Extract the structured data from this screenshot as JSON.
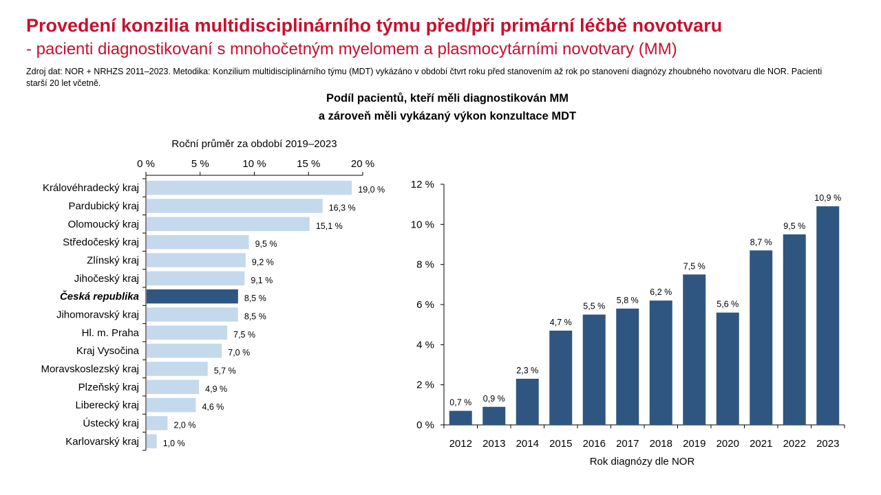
{
  "page": {
    "title": "Provedení konzilia multidisciplinárního týmu před/při primární léčbě novotvaru",
    "subtitle": "- pacienti diagnostikovaní s mnohočetným myelomem a plasmocytárními novotvary (MM)",
    "source_note": "Zdroj dat: NOR + NRHZS 2011–2023. Metodika: Konzilium multidisciplinárního týmu (MDT) vykázáno v období čtvrt roku před stanovením až rok po stanovení diagnózy zhoubného novotvaru dle NOR. Pacienti starší 20 let včetně.",
    "chart_heading_line1": "Podíl pacientů, kteří měli diagnostikován MM",
    "chart_heading_line2": "a zároveň měli vykázaný výkon konzultace MDT"
  },
  "chart_data": [
    {
      "type": "bar",
      "orientation": "horizontal",
      "title": "Roční průměr za období 2019–2023",
      "xlabel": "",
      "ylabel": "",
      "xlim": [
        0,
        20
      ],
      "x_ticks": [
        "0 %",
        "5 %",
        "10 %",
        "15 %",
        "20 %"
      ],
      "x_axis_position": "top",
      "categories": [
        "Královéhradecký kraj",
        "Pardubický kraj",
        "Olomoucký kraj",
        "Středočeský kraj",
        "Zlínský kraj",
        "Jihočeský kraj",
        "Česká republika",
        "Jihomoravský kraj",
        "Hl. m. Praha",
        "Kraj Vysočina",
        "Moravskoslezský kraj",
        "Plzeňský kraj",
        "Liberecký kraj",
        "Ústecký kraj",
        "Karlovarský kraj"
      ],
      "values": [
        19.0,
        16.3,
        15.1,
        9.5,
        9.2,
        9.1,
        8.5,
        8.5,
        7.5,
        7.0,
        5.7,
        4.9,
        4.6,
        2.0,
        1.0
      ],
      "data_labels": [
        "19,0 %",
        "16,3 %",
        "15,1 %",
        "9,5 %",
        "9,2 %",
        "9,1 %",
        "8,5 %",
        "8,5 %",
        "7,5 %",
        "7,0 %",
        "5,7 %",
        "4,9 %",
        "4,6 %",
        "2,0 %",
        "1,0 %"
      ],
      "highlight_category": "Česká republika",
      "colors": {
        "bar": "#c5d9ec",
        "highlight": "#2f5680"
      },
      "grid": false
    },
    {
      "type": "bar",
      "orientation": "vertical",
      "title": "",
      "xlabel": "Rok diagnózy dle NOR",
      "ylabel": "",
      "ylim": [
        0,
        12
      ],
      "y_ticks": [
        "0 %",
        "2 %",
        "4 %",
        "6 %",
        "8 %",
        "10 %",
        "12 %"
      ],
      "categories": [
        "2012",
        "2013",
        "2014",
        "2015",
        "2016",
        "2017",
        "2018",
        "2019",
        "2020",
        "2021",
        "2022",
        "2023"
      ],
      "values": [
        0.7,
        0.9,
        2.3,
        4.7,
        5.5,
        5.8,
        6.2,
        7.5,
        5.6,
        8.7,
        9.5,
        10.9
      ],
      "data_labels": [
        "0,7 %",
        "0,9 %",
        "2,3 %",
        "4,7 %",
        "5,5 %",
        "5,8 %",
        "6,2 %",
        "7,5 %",
        "5,6 %",
        "8,7 %",
        "9,5 %",
        "10,9 %"
      ],
      "colors": {
        "bar": "#2f5680"
      },
      "grid": false
    }
  ]
}
